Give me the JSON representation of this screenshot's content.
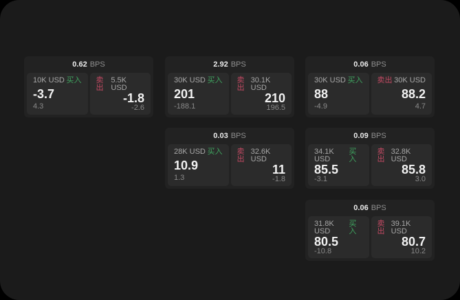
{
  "labels": {
    "bps": "BPS",
    "buy": "买入",
    "sell": "卖出"
  },
  "colors": {
    "background": "#000000",
    "panel_bg": "#1b1b1b",
    "card_bg": "#222222",
    "pane_bg": "#2b2b2b",
    "buy_green": "#3fa35f",
    "sell_red": "#c34a63"
  },
  "cards": [
    {
      "bps": "0.62",
      "buy": {
        "size": "10K USD",
        "price": "-3.7",
        "change": "4.3"
      },
      "sell": {
        "size": "5.5K USD",
        "price": "-1.8",
        "change": "-2.6"
      }
    },
    {
      "bps": "2.92",
      "buy": {
        "size": "30K USD",
        "price": "201",
        "change": "-188.1"
      },
      "sell": {
        "size": "30.1K USD",
        "price": "210",
        "change": "196.5"
      }
    },
    {
      "bps": "0.06",
      "buy": {
        "size": "30K USD",
        "price": "88",
        "change": "-4.9"
      },
      "sell": {
        "size": "30K USD",
        "price": "88.2",
        "change": "4.7"
      }
    },
    {
      "bps": "0.03",
      "buy": {
        "size": "28K USD",
        "price": "10.9",
        "change": "1.3"
      },
      "sell": {
        "size": "32.6K USD",
        "price": "11",
        "change": "-1.8"
      }
    },
    {
      "bps": "0.09",
      "buy": {
        "size": "34.1K USD",
        "price": "85.5",
        "change": "-3.1"
      },
      "sell": {
        "size": "32.8K USD",
        "price": "85.8",
        "change": "3.0"
      }
    },
    {
      "bps": "0.06",
      "buy": {
        "size": "31.8K USD",
        "price": "80.5",
        "change": "-10.8"
      },
      "sell": {
        "size": "39.1K USD",
        "price": "80.7",
        "change": "10.2"
      }
    }
  ]
}
